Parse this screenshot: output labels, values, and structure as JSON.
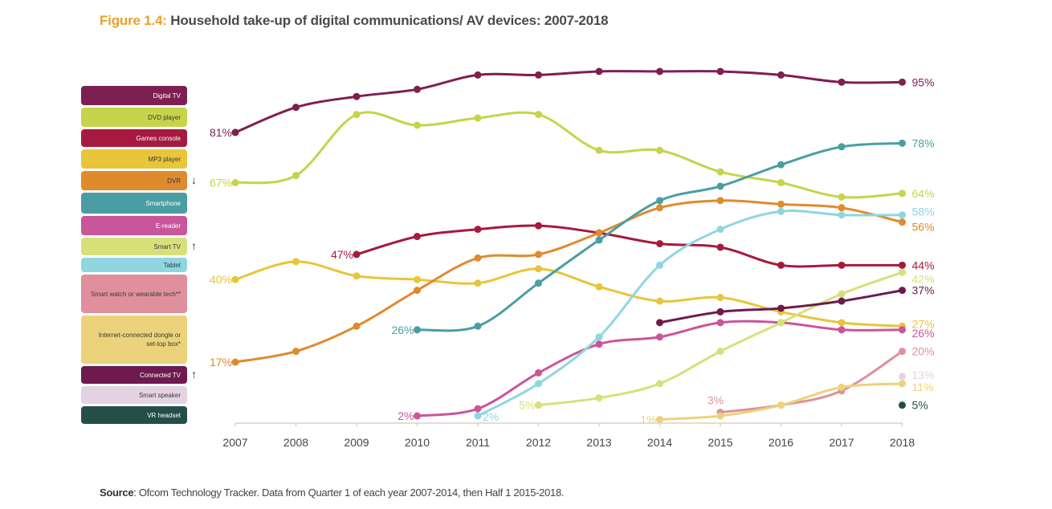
{
  "title": {
    "figure_label": "Figure 1.4:",
    "text": " Household take-up of digital communications/ AV devices: 2007-2018"
  },
  "source": {
    "label": "Source",
    "text": ": Ofcom Technology Tracker. Data from Quarter 1 of each year 2007-2014, then Half 1 2015-2018."
  },
  "legend": [
    {
      "name": "Digital TV",
      "color": "#7e1f52",
      "text_color": "#ffffff",
      "arrow": ""
    },
    {
      "name": "DVD player",
      "color": "#c5d44a",
      "text_color": "#3a3a3a",
      "arrow": ""
    },
    {
      "name": "Games console",
      "color": "#a51a3e",
      "text_color": "#ffffff",
      "arrow": ""
    },
    {
      "name": "MP3 player",
      "color": "#e8c53a",
      "text_color": "#3a3a3a",
      "arrow": ""
    },
    {
      "name": "DVR",
      "color": "#e08a2e",
      "text_color": "#3a3a3a",
      "arrow": "↓"
    },
    {
      "name": "Smartphone",
      "color": "#4a9ea3",
      "text_color": "#ffffff",
      "arrow": ""
    },
    {
      "name": "E-reader",
      "color": "#c9559a",
      "text_color": "#ffffff",
      "arrow": ""
    },
    {
      "name": "Smart TV",
      "color": "#d8e07a",
      "text_color": "#3a3a3a",
      "arrow": "↑"
    },
    {
      "name": "Tablet",
      "color": "#8fd6e0",
      "text_color": "#3a3a3a",
      "arrow": ""
    },
    {
      "name": "Smart watch or wearable tech**",
      "color": "#e0909c",
      "text_color": "#3a3a3a",
      "arrow": ""
    },
    {
      "name": "Internet-connected dongle or set-top box*",
      "color": "#ecd27a",
      "text_color": "#3a3a3a",
      "arrow": ""
    },
    {
      "name": "Connected TV",
      "color": "#6e1a4e",
      "text_color": "#ffffff",
      "arrow": "↑"
    },
    {
      "name": "Smart speaker",
      "color": "#e3d3e3",
      "text_color": "#3a3a3a",
      "arrow": ""
    },
    {
      "name": "VR headset",
      "color": "#244e4a",
      "text_color": "#ffffff",
      "arrow": ""
    }
  ],
  "chart_data": {
    "type": "line",
    "title": "Household take-up of digital communications/ AV devices: 2007-2018",
    "xlabel": "",
    "ylabel": "",
    "x": [
      2007,
      2008,
      2009,
      2010,
      2011,
      2012,
      2013,
      2014,
      2015,
      2016,
      2017,
      2018
    ],
    "ylim": [
      0,
      100
    ],
    "grid": false,
    "legend_position": "left",
    "series": [
      {
        "name": "Digital TV",
        "color": "#7e1f52",
        "values": [
          81,
          88,
          91,
          93,
          97,
          97,
          98,
          98,
          98,
          97,
          95,
          95
        ],
        "start_label": "81%",
        "end_label": "95%"
      },
      {
        "name": "DVD player",
        "color": "#c5d44a",
        "values": [
          67,
          69,
          86,
          83,
          85,
          86,
          76,
          76,
          70,
          67,
          63,
          64
        ],
        "start_label": "67%",
        "end_label": "64%"
      },
      {
        "name": "Games console",
        "color": "#a51a3e",
        "values": [
          null,
          null,
          47,
          52,
          54,
          55,
          53,
          50,
          49,
          44,
          44,
          44
        ],
        "start_label": "47%",
        "end_label": "44%"
      },
      {
        "name": "MP3 player",
        "color": "#e8c53a",
        "values": [
          40,
          45,
          41,
          40,
          39,
          43,
          38,
          34,
          35,
          31,
          28,
          27
        ],
        "start_label": "40%",
        "end_label": "27%"
      },
      {
        "name": "DVR",
        "color": "#e08a2e",
        "values": [
          17,
          20,
          27,
          37,
          46,
          47,
          53,
          60,
          62,
          61,
          60,
          56
        ],
        "start_label": "17%",
        "end_label": "56%"
      },
      {
        "name": "Smartphone",
        "color": "#4a9ea3",
        "values": [
          null,
          null,
          null,
          26,
          27,
          39,
          51,
          62,
          66,
          72,
          77,
          78
        ],
        "start_label": "26%",
        "end_label": "78%"
      },
      {
        "name": "E-reader",
        "color": "#c9559a",
        "values": [
          null,
          null,
          null,
          2,
          4,
          14,
          22,
          24,
          28,
          28,
          26,
          26
        ],
        "start_label": "2%",
        "end_label": "26%"
      },
      {
        "name": "Smart TV",
        "color": "#d8e07a",
        "values": [
          null,
          null,
          null,
          null,
          null,
          5,
          7,
          11,
          20,
          28,
          36,
          42
        ],
        "start_label": "5%",
        "end_label": "42%"
      },
      {
        "name": "Tablet",
        "color": "#8fd6e0",
        "values": [
          null,
          null,
          null,
          null,
          2,
          11,
          24,
          44,
          54,
          59,
          58,
          58
        ],
        "start_label": "2%",
        "end_label": "58%"
      },
      {
        "name": "Smart watch or wearable tech**",
        "color": "#e0909c",
        "values": [
          null,
          null,
          null,
          null,
          null,
          null,
          null,
          null,
          3,
          5,
          9,
          20
        ],
        "start_label": "3%",
        "end_label": "20%"
      },
      {
        "name": "Internet-connected dongle or set-top box*",
        "color": "#ecd27a",
        "values": [
          null,
          null,
          null,
          null,
          null,
          null,
          null,
          1,
          2,
          5,
          10,
          11
        ],
        "start_label": "1%",
        "end_label": "11%"
      },
      {
        "name": "Connected TV",
        "color": "#6e1a4e",
        "values": [
          null,
          null,
          null,
          null,
          null,
          null,
          null,
          28,
          31,
          32,
          34,
          37
        ],
        "start_label": "",
        "end_label": "37%"
      },
      {
        "name": "Smart speaker",
        "color": "#e3d3e3",
        "values": [
          null,
          null,
          null,
          null,
          null,
          null,
          null,
          null,
          null,
          null,
          null,
          13
        ],
        "start_label": "",
        "end_label": "13%"
      },
      {
        "name": "VR headset",
        "color": "#244e4a",
        "values": [
          null,
          null,
          null,
          null,
          null,
          null,
          null,
          null,
          null,
          null,
          null,
          5
        ],
        "start_label": "",
        "end_label": "5%"
      }
    ]
  }
}
